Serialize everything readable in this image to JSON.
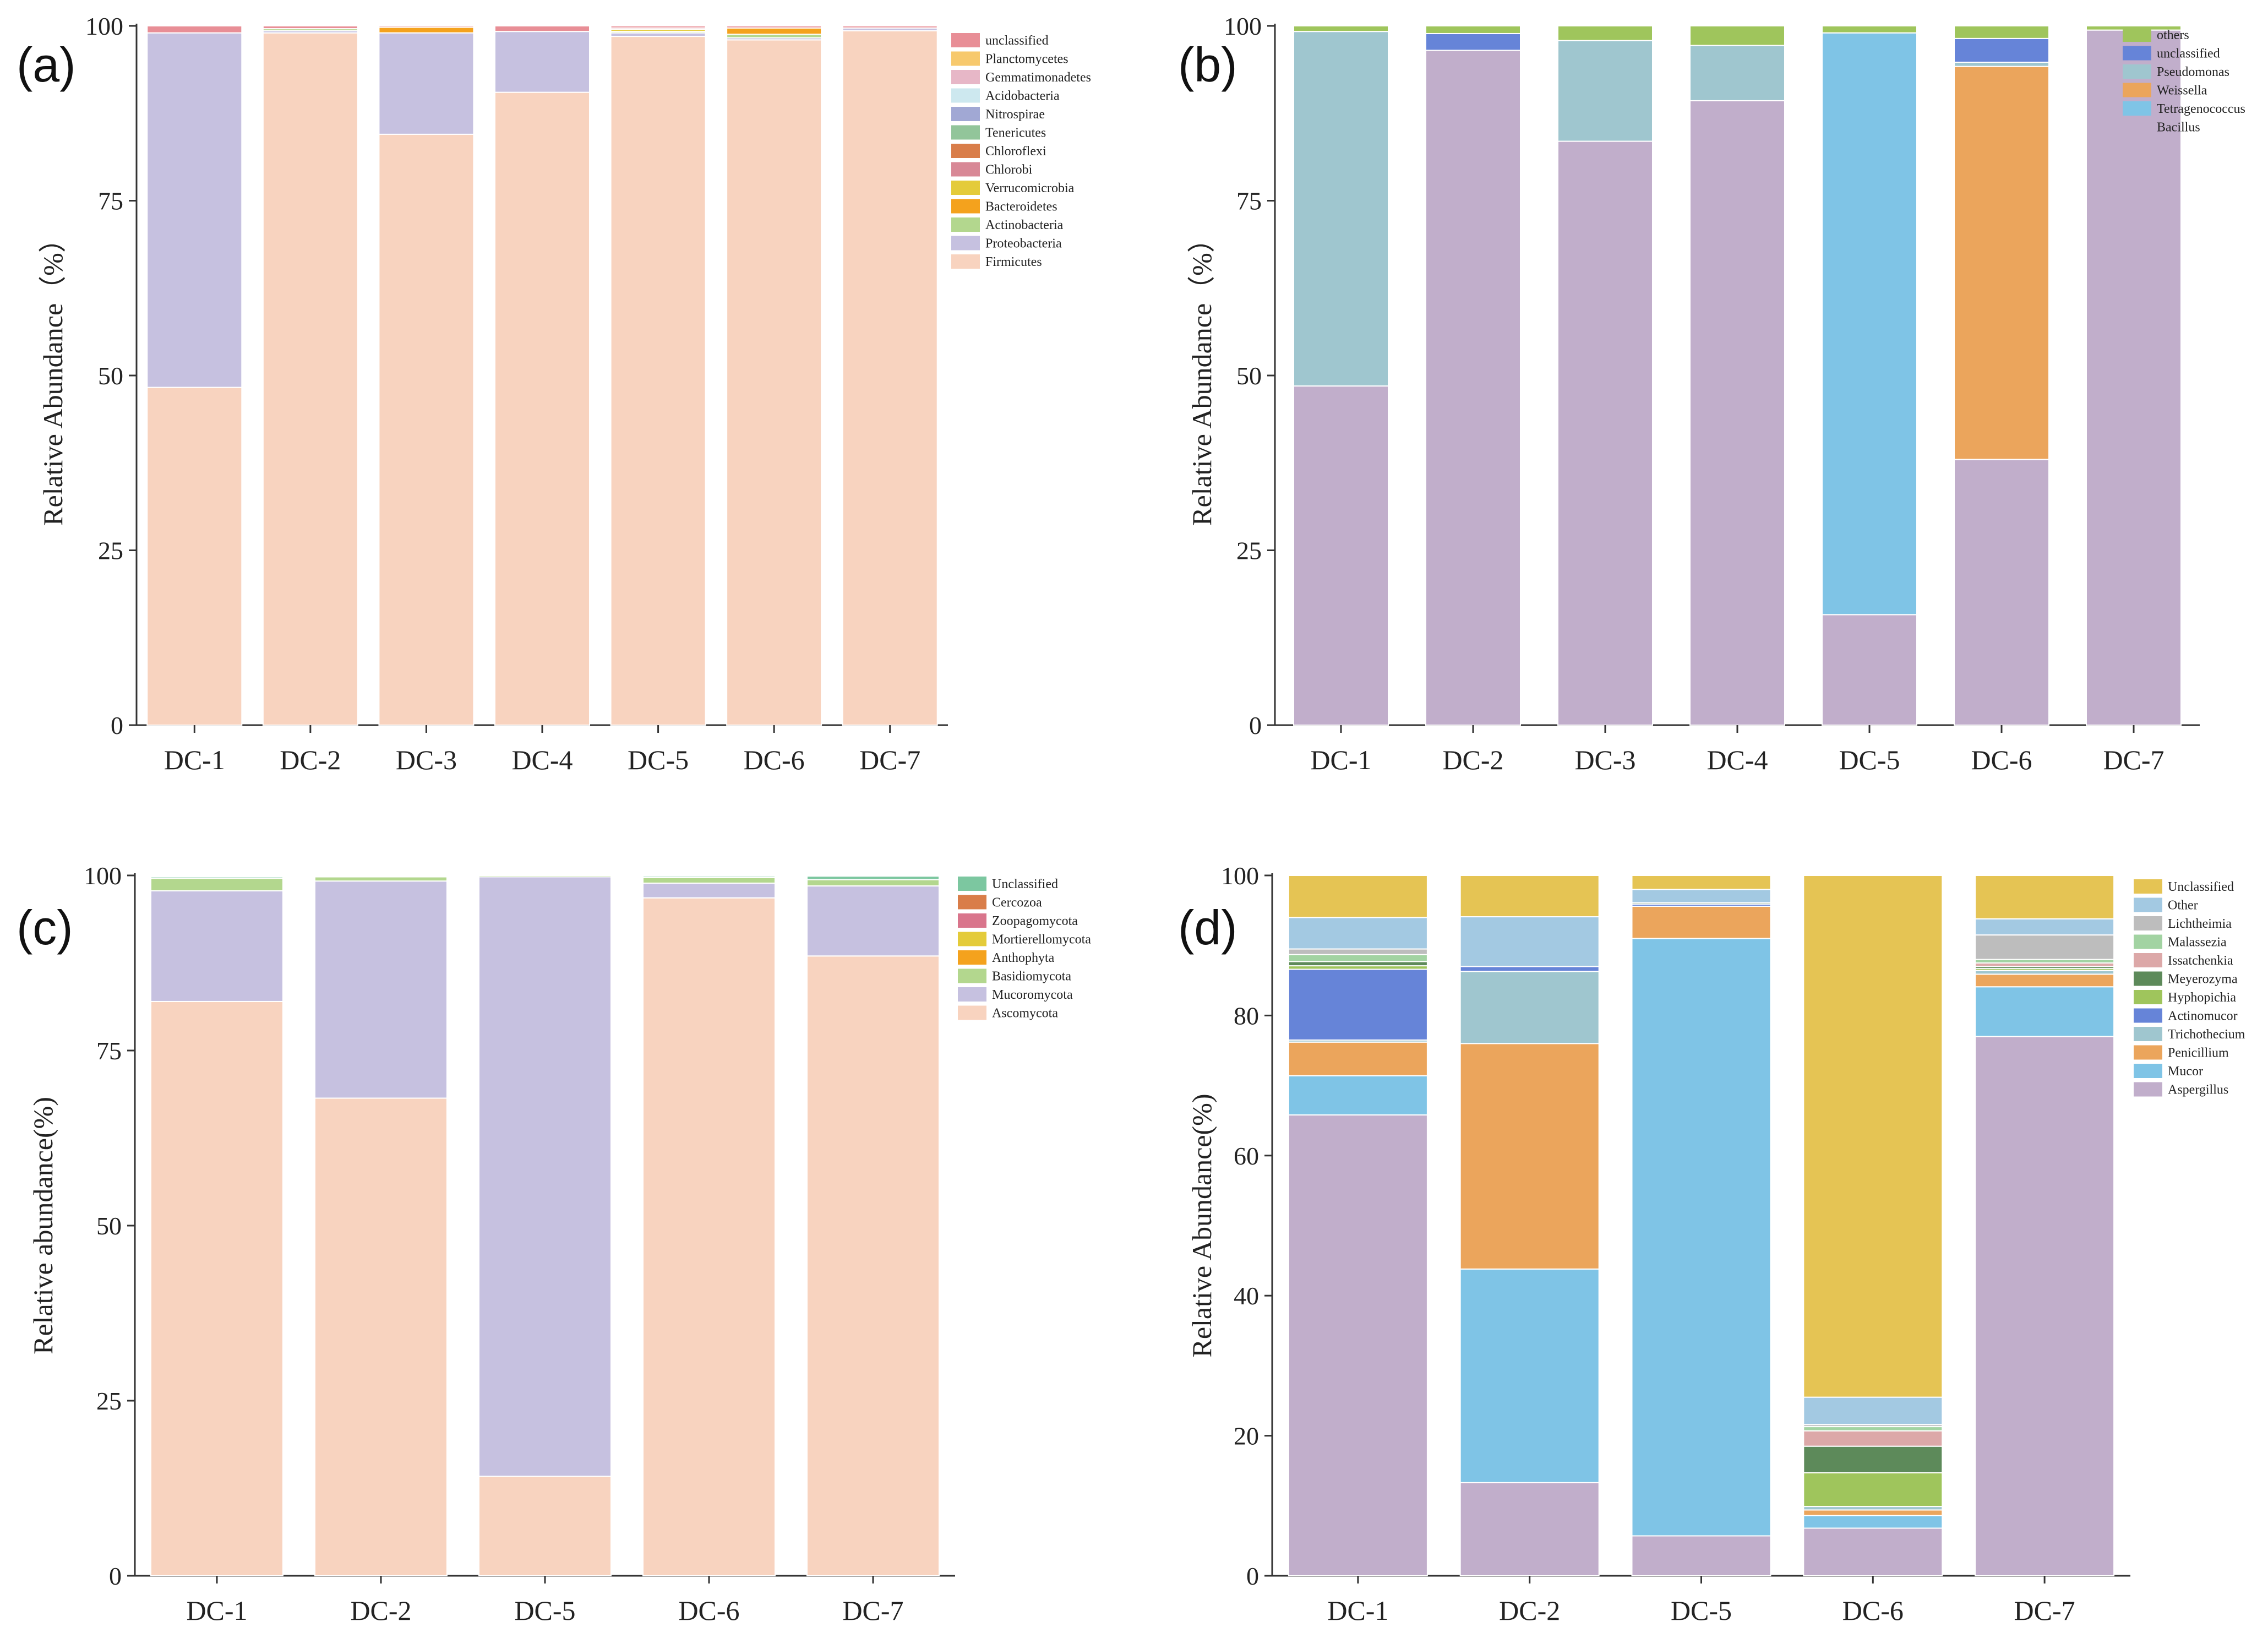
{
  "colors": {
    "Firmicutes": "#f8d3bf",
    "Proteobacteria": "#c6c1e0",
    "Actinobacteria": "#b3d78e",
    "Bacteroidetes": "#f4a21d",
    "Verrucomicrobia": "#e4cb3a",
    "Chlorobi": "#d88896",
    "Chloroflexi": "#d97d49",
    "Tenericutes": "#92c59a",
    "Nitrospirae": "#a1a8d4",
    "Acidobacteria": "#cde8ef",
    "Gemmatimonadetes": "#e7b7c7",
    "Planctomycetes": "#f7c96d",
    "unclassified_a": "#e88e96",
    "Bacillus": "#c1aecb",
    "Tetragenococcus": "#7fc4e6",
    "Weissella": "#eba55c",
    "Pseudomonas": "#9fc6cf",
    "unclassified_b": "#6684d8",
    "others": "#9fc55c",
    "Ascomycota": "#f8d3bf",
    "Mucoromycota": "#c6c1e0",
    "Basidiomycota": "#b3d78e",
    "Anthophyta": "#f4a21d",
    "Mortierellomycota": "#e4cb3a",
    "Zoopagomycota": "#d9758c",
    "Cercozoa": "#d97d49",
    "Unclassified_c": "#7cc7a0",
    "Aspergillus": "#c1aecb",
    "Mucor": "#7fc4e6",
    "Penicillium": "#eba55c",
    "Trichothecium": "#9fc6cf",
    "Actinomucor": "#6684d8",
    "Hyphopichia": "#9fc55c",
    "Meyerozyma": "#5d8a5a",
    "Issatchenkia": "#dca8a8",
    "Malassezia": "#a2d3a2",
    "Lichtheimia": "#bdbdbd",
    "Other": "#a3c9e2",
    "Unclassified_d": "#e5c454"
  },
  "chart_data": [
    {
      "panel": "(a)",
      "type": "bar",
      "stacked": true,
      "ylabel": "Relative Abundance（%）",
      "ylim": [
        0,
        100
      ],
      "yticks": [
        0,
        25,
        50,
        75,
        100
      ],
      "categories": [
        "DC-1",
        "DC-2",
        "DC-3",
        "DC-4",
        "DC-5",
        "DC-6",
        "DC-7"
      ],
      "legend": [
        "unclassified",
        "Planctomycetes",
        "Gemmatimonadetes",
        "Acidobacteria",
        "Nitrospirae",
        "Tenericutes",
        "Chloroflexi",
        "Chlorobi",
        "Verrucomicrobia",
        "Bacteroidetes",
        "Actinobacteria",
        "Proteobacteria",
        "Firmicutes"
      ],
      "series": [
        {
          "name": "Firmicutes",
          "color_key": "Firmicutes",
          "values": [
            48.3,
            99.0,
            84.5,
            90.5,
            98.5,
            98.0,
            99.3
          ]
        },
        {
          "name": "Proteobacteria",
          "color_key": "Proteobacteria",
          "values": [
            50.7,
            0.3,
            14.5,
            8.7,
            0.5,
            0.3,
            0.4
          ]
        },
        {
          "name": "Actinobacteria",
          "color_key": "Actinobacteria",
          "values": [
            0,
            0.3,
            0,
            0,
            0.2,
            0.5,
            0
          ]
        },
        {
          "name": "Bacteroidetes",
          "color_key": "Bacteroidetes",
          "values": [
            0,
            0,
            0.8,
            0,
            0,
            0.9,
            0
          ]
        },
        {
          "name": "Verrucomicrobia",
          "color_key": "Verrucomicrobia",
          "values": [
            0,
            0,
            0,
            0,
            0.3,
            0,
            0
          ]
        },
        {
          "name": "Chlorobi",
          "color_key": "Chlorobi",
          "values": [
            0,
            0,
            0,
            0,
            0.2,
            0,
            0
          ]
        },
        {
          "name": "Chloroflexi",
          "color_key": "Chloroflexi",
          "values": [
            0,
            0,
            0,
            0,
            0,
            0,
            0
          ]
        },
        {
          "name": "Tenericutes",
          "color_key": "Tenericutes",
          "values": [
            0,
            0,
            0,
            0,
            0,
            0,
            0
          ]
        },
        {
          "name": "Nitrospirae",
          "color_key": "Nitrospirae",
          "values": [
            0,
            0,
            0,
            0,
            0,
            0,
            0
          ]
        },
        {
          "name": "Acidobacteria",
          "color_key": "Acidobacteria",
          "values": [
            0,
            0,
            0,
            0,
            0,
            0,
            0
          ]
        },
        {
          "name": "Gemmatimonadetes",
          "color_key": "Gemmatimonadetes",
          "values": [
            0,
            0,
            0,
            0,
            0,
            0,
            0
          ]
        },
        {
          "name": "Planctomycetes",
          "color_key": "Planctomycetes",
          "values": [
            0,
            0,
            0,
            0,
            0,
            0,
            0
          ]
        },
        {
          "name": "unclassified",
          "color_key": "unclassified_a",
          "values": [
            1.0,
            0.4,
            0.2,
            0.8,
            0.3,
            0.3,
            0.3
          ]
        }
      ]
    },
    {
      "panel": "(b)",
      "type": "bar",
      "stacked": true,
      "ylabel": "Relative Abundance（%）",
      "ylim": [
        0,
        100
      ],
      "yticks": [
        0,
        25,
        50,
        75,
        100
      ],
      "categories": [
        "DC-1",
        "DC-2",
        "DC-3",
        "DC-4",
        "DC-5",
        "DC-6",
        "DC-7"
      ],
      "legend": [
        "others",
        "unclassified",
        "Pseudomonas",
        "Weissella",
        "Tetragenococcus",
        "Bacillus"
      ],
      "series": [
        {
          "name": "Bacillus",
          "color_key": "Bacillus",
          "values": [
            48.5,
            96.5,
            83.5,
            89.3,
            15.8,
            38.0,
            99.4
          ]
        },
        {
          "name": "Tetragenococcus",
          "color_key": "Tetragenococcus",
          "values": [
            0,
            0,
            0,
            0,
            83.2,
            0,
            0
          ]
        },
        {
          "name": "Weissella",
          "color_key": "Weissella",
          "values": [
            0,
            0,
            0,
            0,
            0,
            56.2,
            0
          ]
        },
        {
          "name": "Pseudomonas",
          "color_key": "Pseudomonas",
          "values": [
            50.7,
            0,
            14.4,
            7.9,
            0,
            0.6,
            0
          ]
        },
        {
          "name": "unclassified",
          "color_key": "unclassified_b",
          "values": [
            0,
            2.4,
            0,
            0,
            0,
            3.4,
            0
          ]
        },
        {
          "name": "others",
          "color_key": "others",
          "values": [
            0.8,
            1.1,
            2.1,
            2.8,
            1.0,
            1.8,
            0.6
          ]
        }
      ]
    },
    {
      "panel": "(c)",
      "type": "bar",
      "stacked": true,
      "ylabel": "Relative abundance(%)",
      "ylim": [
        0,
        100
      ],
      "yticks": [
        0,
        25,
        50,
        75,
        100
      ],
      "categories": [
        "DC-1",
        "DC-2",
        "DC-5",
        "DC-6",
        "DC-7"
      ],
      "legend": [
        "Unclassified",
        "Cercozoa",
        "Zoopagomycota",
        "Mortierellomycota",
        "Anthophyta",
        "Basidiomycota",
        "Mucoromycota",
        "Ascomycota"
      ],
      "series": [
        {
          "name": "Ascomycota",
          "color_key": "Ascomycota",
          "values": [
            82.0,
            68.2,
            14.2,
            96.8,
            88.5
          ]
        },
        {
          "name": "Mucoromycota",
          "color_key": "Mucoromycota",
          "values": [
            15.8,
            31.0,
            85.6,
            2.1,
            10.0
          ]
        },
        {
          "name": "Basidiomycota",
          "color_key": "Basidiomycota",
          "values": [
            1.8,
            0.6,
            0.2,
            0.8,
            0.9
          ]
        },
        {
          "name": "Anthophyta",
          "color_key": "Anthophyta",
          "values": [
            0,
            0,
            0,
            0,
            0
          ]
        },
        {
          "name": "Mortierellomycota",
          "color_key": "Mortierellomycota",
          "values": [
            0,
            0,
            0,
            0,
            0
          ]
        },
        {
          "name": "Zoopagomycota",
          "color_key": "Zoopagomycota",
          "values": [
            0,
            0,
            0,
            0,
            0
          ]
        },
        {
          "name": "Cercozoa",
          "color_key": "Cercozoa",
          "values": [
            0,
            0,
            0,
            0,
            0
          ]
        },
        {
          "name": "Unclassified",
          "color_key": "Unclassified_c",
          "values": [
            0.2,
            0.1,
            0,
            0.2,
            0.5
          ]
        }
      ]
    },
    {
      "panel": "(d)",
      "type": "bar",
      "stacked": true,
      "ylabel": "Relative Abundance(%)",
      "ylim": [
        0,
        100
      ],
      "yticks": [
        0,
        20,
        40,
        60,
        80,
        100
      ],
      "categories": [
        "DC-1",
        "DC-2",
        "DC-5",
        "DC-6",
        "DC-7"
      ],
      "legend": [
        "Unclassified",
        "Other",
        "Lichtheimia",
        "Malassezia",
        "Issatchenkia",
        "Meyerozyma",
        "Hyphopichia",
        "Actinomucor",
        "Trichothecium",
        "Penicillium",
        "Mucor",
        "Aspergillus"
      ],
      "series": [
        {
          "name": "Aspergillus",
          "color_key": "Aspergillus",
          "values": [
            65.8,
            13.3,
            5.7,
            6.8,
            77.0
          ]
        },
        {
          "name": "Mucor",
          "color_key": "Mucor",
          "values": [
            5.6,
            30.5,
            85.3,
            1.8,
            7.1
          ]
        },
        {
          "name": "Penicillium",
          "color_key": "Penicillium",
          "values": [
            4.8,
            32.2,
            4.6,
            0.8,
            1.8
          ]
        },
        {
          "name": "Trichothecium",
          "color_key": "Trichothecium",
          "values": [
            0.3,
            10.3,
            0,
            0.5,
            0.5
          ]
        },
        {
          "name": "Actinomucor",
          "color_key": "Actinomucor",
          "values": [
            10.1,
            0.7,
            0.3,
            0,
            0
          ]
        },
        {
          "name": "Hyphopichia",
          "color_key": "Hyphopichia",
          "values": [
            0.5,
            0,
            0,
            4.8,
            0.3
          ]
        },
        {
          "name": "Meyerozyma",
          "color_key": "Meyerozyma",
          "values": [
            0.6,
            0,
            0.2,
            3.8,
            0.3
          ]
        },
        {
          "name": "Issatchenkia",
          "color_key": "Issatchenkia",
          "values": [
            0,
            0,
            0,
            2.2,
            0.5
          ]
        },
        {
          "name": "Malassezia",
          "color_key": "Malassezia",
          "values": [
            1.0,
            0,
            0,
            0.6,
            0.5
          ]
        },
        {
          "name": "Lichtheimia",
          "color_key": "Lichtheimia",
          "values": [
            0.8,
            0,
            0,
            0.3,
            3.5
          ]
        },
        {
          "name": "Other",
          "color_key": "Other",
          "values": [
            4.5,
            7.1,
            1.9,
            3.9,
            2.3
          ]
        },
        {
          "name": "Unclassified",
          "color_key": "Unclassified_d",
          "values": [
            6.0,
            5.9,
            2.0,
            74.5,
            6.2
          ]
        }
      ]
    }
  ]
}
